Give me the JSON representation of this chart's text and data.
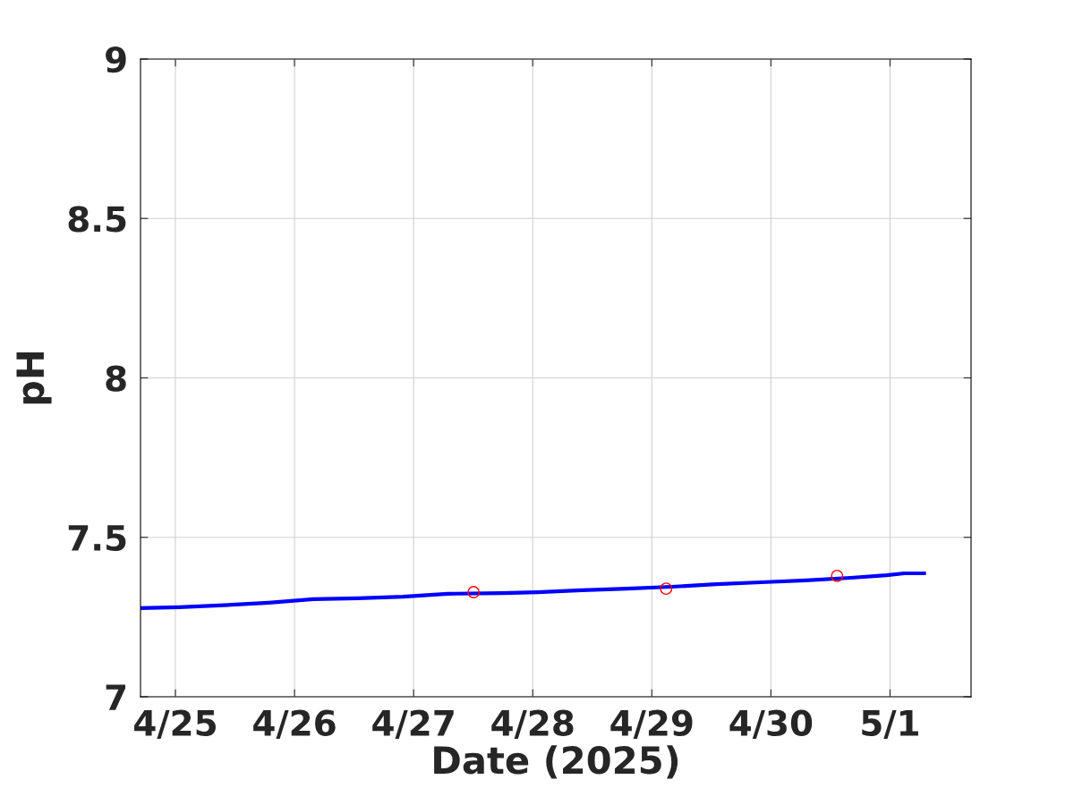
{
  "chart_data": {
    "type": "line",
    "xlabel": "Date (2025)",
    "ylabel": "pH",
    "xlim": [
      "2025-04-24T16:58",
      "2025-05-01T16:20"
    ],
    "xticks": [
      {
        "value": "2025-04-25",
        "label": "4/25"
      },
      {
        "value": "2025-04-26",
        "label": "4/26"
      },
      {
        "value": "2025-04-27",
        "label": "4/27"
      },
      {
        "value": "2025-04-28",
        "label": "4/28"
      },
      {
        "value": "2025-04-29",
        "label": "4/29"
      },
      {
        "value": "2025-04-30",
        "label": "4/30"
      },
      {
        "value": "2025-05-01",
        "label": "5/1"
      }
    ],
    "ylim": [
      7,
      9
    ],
    "yticks": [
      7,
      7.5,
      8,
      8.5,
      9
    ],
    "grid": true,
    "series": [
      {
        "color": "#0000ff",
        "line_style": "solid",
        "x": [
          "2025-04-24T16:58",
          "2025-04-25T00:43",
          "2025-04-25T09:45",
          "2025-04-25T18:46",
          "2025-04-26T03:47",
          "2025-04-26T12:49",
          "2025-04-26T21:50",
          "2025-04-27T06:52",
          "2025-04-27T17:41",
          "2025-04-28T00:55",
          "2025-04-28T09:56",
          "2025-04-28T18:56",
          "2025-04-29T03:58",
          "2025-04-29T12:59",
          "2025-04-29T22:00",
          "2025-04-30T07:02",
          "2025-04-30T16:03",
          "2025-04-30T23:17",
          "2025-05-01T02:53",
          "2025-05-01T06:52"
        ],
        "values": [
          7.278,
          7.281,
          7.287,
          7.295,
          7.306,
          7.309,
          7.314,
          7.323,
          7.325,
          7.328,
          7.334,
          7.339,
          7.345,
          7.353,
          7.359,
          7.365,
          7.373,
          7.381,
          7.387,
          7.387
        ]
      },
      {
        "type": "scatter",
        "color": "#ff0000",
        "marker": "circle",
        "x": [
          "2025-04-27T12:05",
          "2025-04-29T02:53",
          "2025-04-30T13:20"
        ],
        "values": [
          7.328,
          7.339,
          7.379
        ]
      }
    ]
  }
}
